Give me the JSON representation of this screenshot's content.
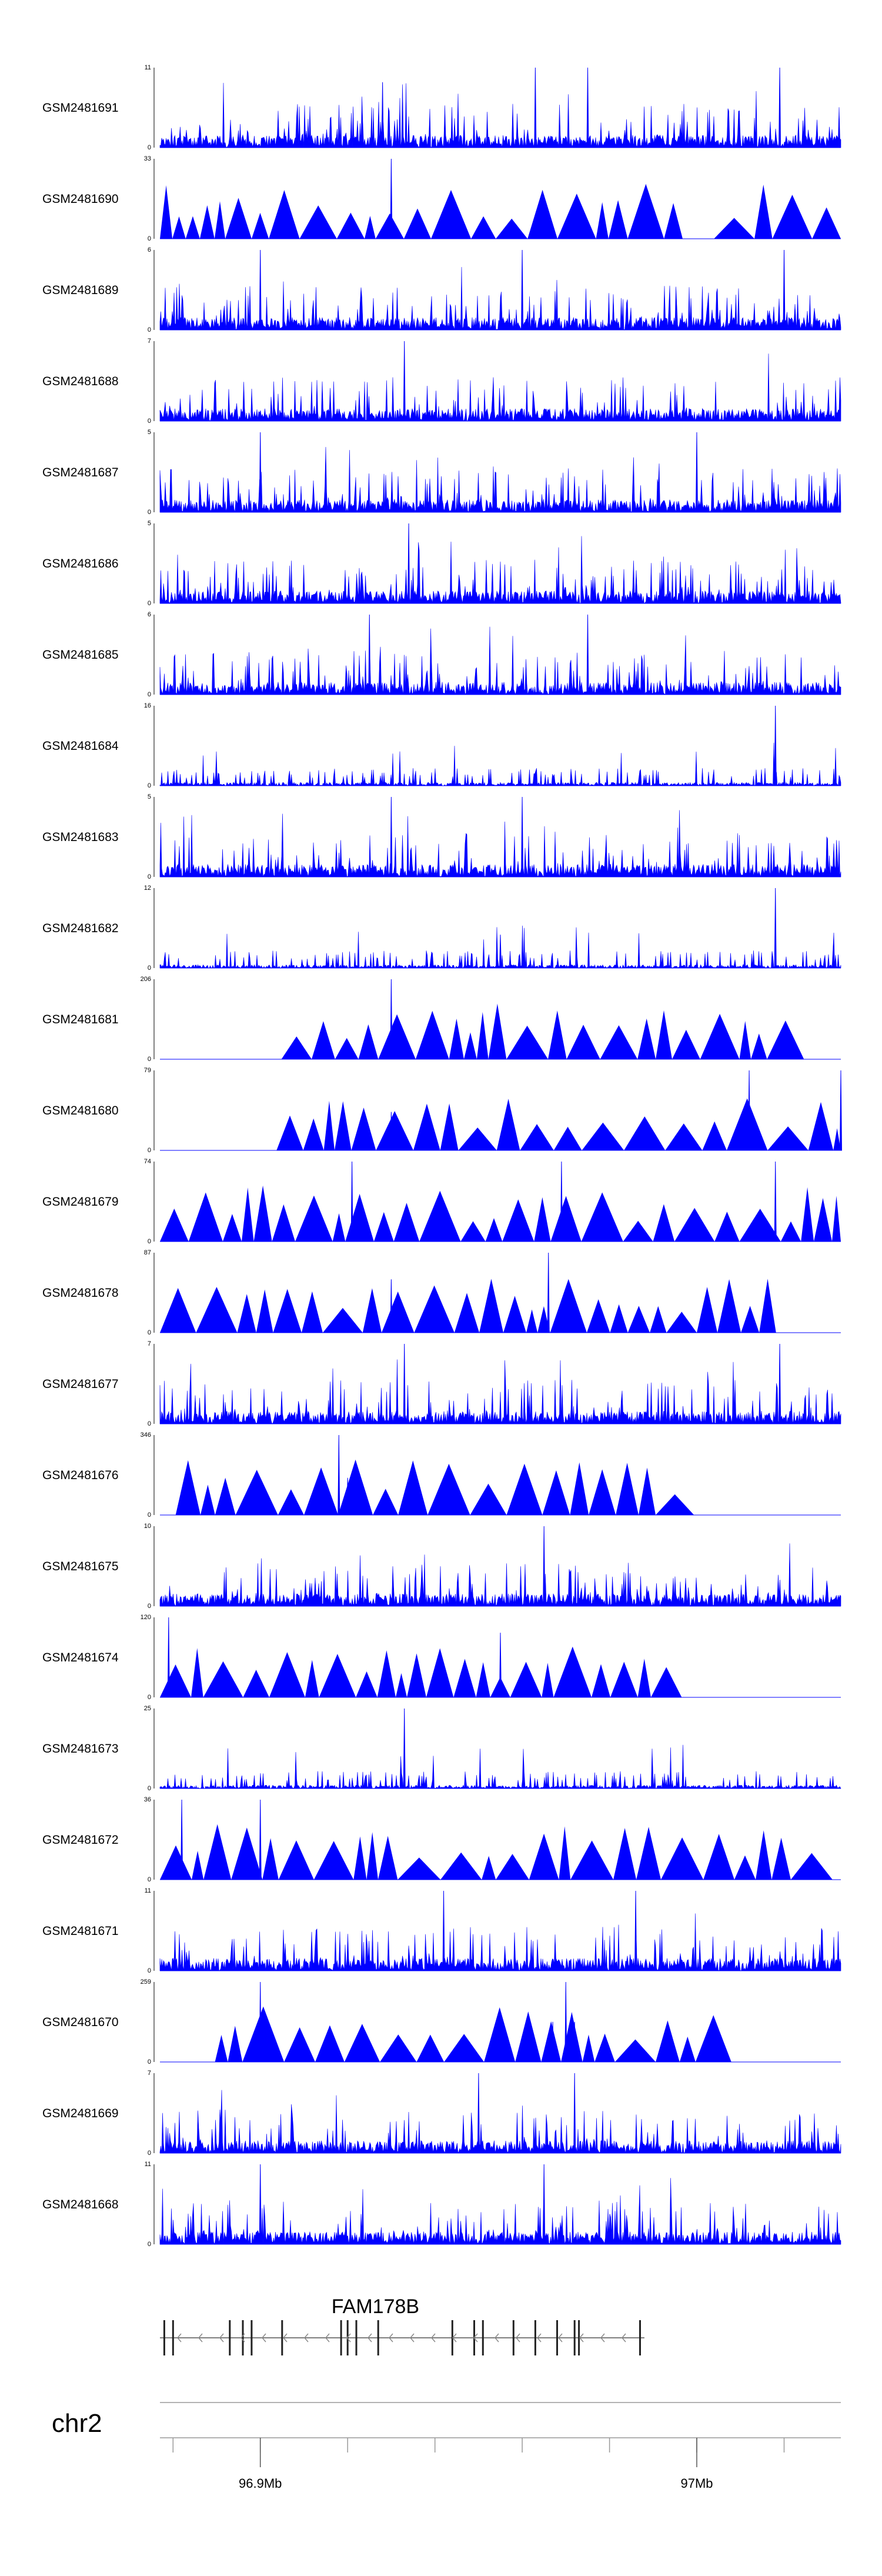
{
  "chart_data": {
    "type": "area",
    "title": "",
    "xlabel": "",
    "ylabel": "",
    "xlim": [
      96.877,
      97.033
    ],
    "x_ticks": [
      {
        "value": 96.9,
        "label": "96.9Mb"
      },
      {
        "value": 97.0,
        "label": "97Mb"
      }
    ],
    "minor_tick_step_mb": 0.02,
    "chromosome": "chr2",
    "gene": {
      "name": "FAM178B",
      "start": 96.877,
      "end": 96.988,
      "strand": "-"
    },
    "series_color": "#0000ff",
    "tracks": [
      {
        "name": "GSM2481691",
        "ylim": [
          0,
          11
        ],
        "style": "dense",
        "peaks": [
          [
            96.963,
            11
          ],
          [
            96.975,
            11
          ],
          [
            97.019,
            11
          ],
          [
            96.928,
            9
          ]
        ]
      },
      {
        "name": "GSM2481690",
        "ylim": [
          0,
          33
        ],
        "style": "triangles",
        "peaks": [
          [
            96.93,
            33
          ]
        ],
        "gaps": [
          [
            96.995,
            97.003
          ]
        ]
      },
      {
        "name": "GSM2481689",
        "ylim": [
          0,
          6
        ],
        "style": "dense",
        "peaks": [
          [
            96.9,
            6
          ],
          [
            96.96,
            6
          ],
          [
            97.02,
            6
          ]
        ]
      },
      {
        "name": "GSM2481688",
        "ylim": [
          0,
          7
        ],
        "style": "dense",
        "peaks": [
          [
            96.933,
            7
          ]
        ]
      },
      {
        "name": "GSM2481687",
        "ylim": [
          0,
          5
        ],
        "style": "dense",
        "peaks": [
          [
            96.9,
            5
          ],
          [
            97.0,
            5
          ]
        ]
      },
      {
        "name": "GSM2481686",
        "ylim": [
          0,
          5
        ],
        "style": "dense",
        "peaks": [
          [
            96.934,
            5
          ]
        ]
      },
      {
        "name": "GSM2481685",
        "ylim": [
          0,
          6
        ],
        "style": "dense",
        "peaks": [
          [
            96.925,
            6
          ],
          [
            96.975,
            6
          ]
        ]
      },
      {
        "name": "GSM2481684",
        "ylim": [
          0,
          16
        ],
        "style": "sparse",
        "peaks": [
          [
            97.018,
            16
          ]
        ]
      },
      {
        "name": "GSM2481683",
        "ylim": [
          0,
          5
        ],
        "style": "dense",
        "peaks": [
          [
            96.93,
            5
          ],
          [
            96.96,
            5
          ]
        ]
      },
      {
        "name": "GSM2481682",
        "ylim": [
          0,
          12
        ],
        "style": "sparse",
        "peaks": [
          [
            97.018,
            12
          ],
          [
            96.955,
            5
          ]
        ]
      },
      {
        "name": "GSM2481681",
        "ylim": [
          0,
          206
        ],
        "style": "triangles",
        "peaks": [
          [
            96.93,
            206
          ],
          [
            96.975,
            63
          ],
          [
            96.96,
            63
          ]
        ],
        "gaps": [
          [
            96.877,
            96.902
          ],
          [
            97.028,
            97.033
          ]
        ]
      },
      {
        "name": "GSM2481680",
        "ylim": [
          0,
          79
        ],
        "style": "triangles",
        "peaks": [
          [
            97.012,
            79
          ],
          [
            97.033,
            79
          ],
          [
            96.93,
            38
          ]
        ],
        "gaps": [
          [
            96.877,
            96.902
          ]
        ]
      },
      {
        "name": "GSM2481679",
        "ylim": [
          0,
          74
        ],
        "style": "triangles",
        "peaks": [
          [
            96.969,
            74
          ],
          [
            96.921,
            74
          ],
          [
            97.018,
            74
          ]
        ]
      },
      {
        "name": "GSM2481678",
        "ylim": [
          0,
          87
        ],
        "style": "triangles",
        "peaks": [
          [
            96.966,
            87
          ],
          [
            96.93,
            58
          ]
        ],
        "gaps": [
          [
            97.02,
            97.033
          ]
        ]
      },
      {
        "name": "GSM2481677",
        "ylim": [
          0,
          7
        ],
        "style": "dense",
        "peaks": [
          [
            96.933,
            7
          ],
          [
            97.019,
            7
          ]
        ]
      },
      {
        "name": "GSM2481676",
        "ylim": [
          0,
          346
        ],
        "style": "triangles",
        "peaks": [
          [
            96.918,
            346
          ],
          [
            96.92,
            161
          ],
          [
            96.96,
            161
          ],
          [
            96.942,
            161
          ]
        ],
        "gaps": [
          [
            96.877,
            96.883
          ],
          [
            96.998,
            97.033
          ]
        ]
      },
      {
        "name": "GSM2481675",
        "ylim": [
          0,
          10
        ],
        "style": "dense",
        "peaks": [
          [
            96.965,
            10
          ]
        ]
      },
      {
        "name": "GSM2481674",
        "ylim": [
          0,
          120
        ],
        "style": "triangles",
        "peaks": [
          [
            96.879,
            120
          ],
          [
            96.955,
            97
          ]
        ],
        "gaps": [
          [
            96.994,
            97.033
          ]
        ]
      },
      {
        "name": "GSM2481673",
        "ylim": [
          0,
          25
        ],
        "style": "sparse",
        "peaks": [
          [
            96.933,
            25
          ]
        ]
      },
      {
        "name": "GSM2481672",
        "ylim": [
          0,
          36
        ],
        "style": "triangles",
        "peaks": [
          [
            96.882,
            36
          ],
          [
            96.9,
            36
          ]
        ],
        "gaps": [
          [
            97.03,
            97.033
          ]
        ]
      },
      {
        "name": "GSM2481671",
        "ylim": [
          0,
          11
        ],
        "style": "dense",
        "peaks": [
          [
            96.942,
            11
          ],
          [
            96.986,
            11
          ]
        ]
      },
      {
        "name": "GSM2481670",
        "ylim": [
          0,
          259
        ],
        "style": "triangles",
        "peaks": [
          [
            96.9,
            259
          ],
          [
            96.97,
            259
          ],
          [
            96.967,
            130
          ],
          [
            96.972,
            130
          ]
        ],
        "gaps": [
          [
            96.877,
            96.886
          ],
          [
            97.007,
            97.033
          ]
        ]
      },
      {
        "name": "GSM2481669",
        "ylim": [
          0,
          7
        ],
        "style": "dense",
        "peaks": [
          [
            96.95,
            7
          ],
          [
            96.972,
            7
          ]
        ]
      },
      {
        "name": "GSM2481668",
        "ylim": [
          0,
          11
        ],
        "style": "dense",
        "peaks": [
          [
            96.9,
            11
          ],
          [
            96.965,
            11
          ]
        ]
      }
    ]
  }
}
